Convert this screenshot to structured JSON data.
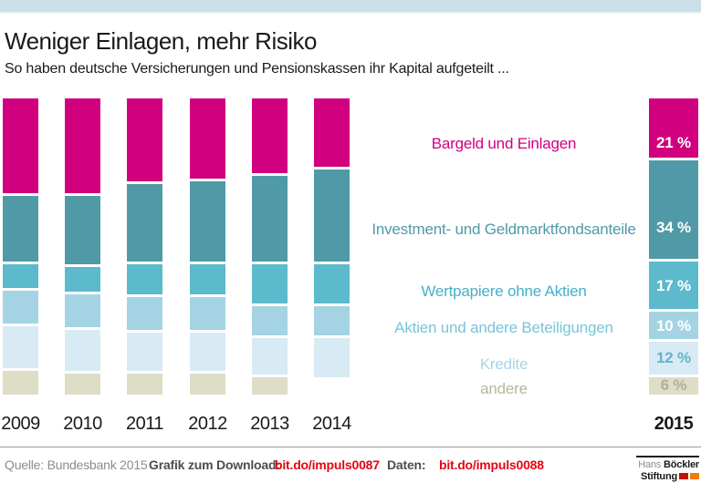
{
  "header": {
    "title": "Weniger Einlagen, mehr Risiko",
    "subtitle": "So haben deutsche Versicherungen und Pensionskassen ihr Kapital aufgeteilt ..."
  },
  "colors": {
    "accent_bar": "#cbdfe9",
    "link_red": "#e30613",
    "logo_flag_red": "#c41200",
    "logo_flag_orange": "#ef7c00"
  },
  "chart_data": {
    "type": "bar",
    "stacked": true,
    "orientation": "vertical",
    "unit": "percent",
    "grid": false,
    "legend_position": "center-labels-right",
    "categories": [
      "2009",
      "2010",
      "2011",
      "2012",
      "2013",
      "2014",
      "2015"
    ],
    "series": [
      {
        "name": "Bargeld und Einlagen",
        "color": "#d1007e",
        "label_color": "#d1007e",
        "pct_text_color": "#ffffff",
        "values": [
          33,
          33,
          29,
          28,
          26,
          24,
          21
        ],
        "value_label_2015": "21 %"
      },
      {
        "name": "Investment- und Geldmarktfondsanteile",
        "color": "#4f9aa6",
        "label_color": "#4f9aa6",
        "pct_text_color": "#ffffff",
        "values": [
          23,
          24,
          27,
          28,
          30,
          32,
          34
        ],
        "value_label_2015": "34 %"
      },
      {
        "name": "Wertpapiere ohne Aktien",
        "color": "#5db9cc",
        "label_color": "#45b1c8",
        "pct_text_color": "#ffffff",
        "values": [
          9,
          9,
          11,
          11,
          14,
          14,
          17
        ],
        "value_label_2015": "17 %"
      },
      {
        "name": "Aktien und andere Beteiligungen",
        "color": "#a4d4e4",
        "label_color": "#79c4da",
        "pct_text_color": "#ffffff",
        "values": [
          12,
          12,
          12,
          12,
          11,
          11,
          10
        ],
        "value_label_2015": "10 %"
      },
      {
        "name": "Kredite",
        "color": "#d8eaf4",
        "label_color": "#a6d4e6",
        "pct_text_color": "#62b4cd",
        "values": [
          15,
          15,
          14,
          14,
          13,
          13,
          12
        ],
        "value_label_2015": "12 %"
      },
      {
        "name": "andere",
        "color": "#deddc6",
        "label_color": "#b8b59d",
        "pct_text_color": "#b2af99",
        "values": [
          8,
          7,
          7,
          7,
          6,
          null,
          6
        ],
        "value_label_2015": "6 %"
      }
    ],
    "note": "2014 bar shows no 'andere' segment"
  },
  "footer": {
    "source": "Quelle: Bundesbank 2015",
    "download_label": "Grafik zum Download:",
    "download_link": "bit.do/impuls0087",
    "data_label": "Daten:",
    "data_link": "bit.do/impuls0088",
    "logo": {
      "line1_light": "Hans",
      "line1_bold": "Böckler",
      "line2_bold": "Stiftung"
    }
  }
}
